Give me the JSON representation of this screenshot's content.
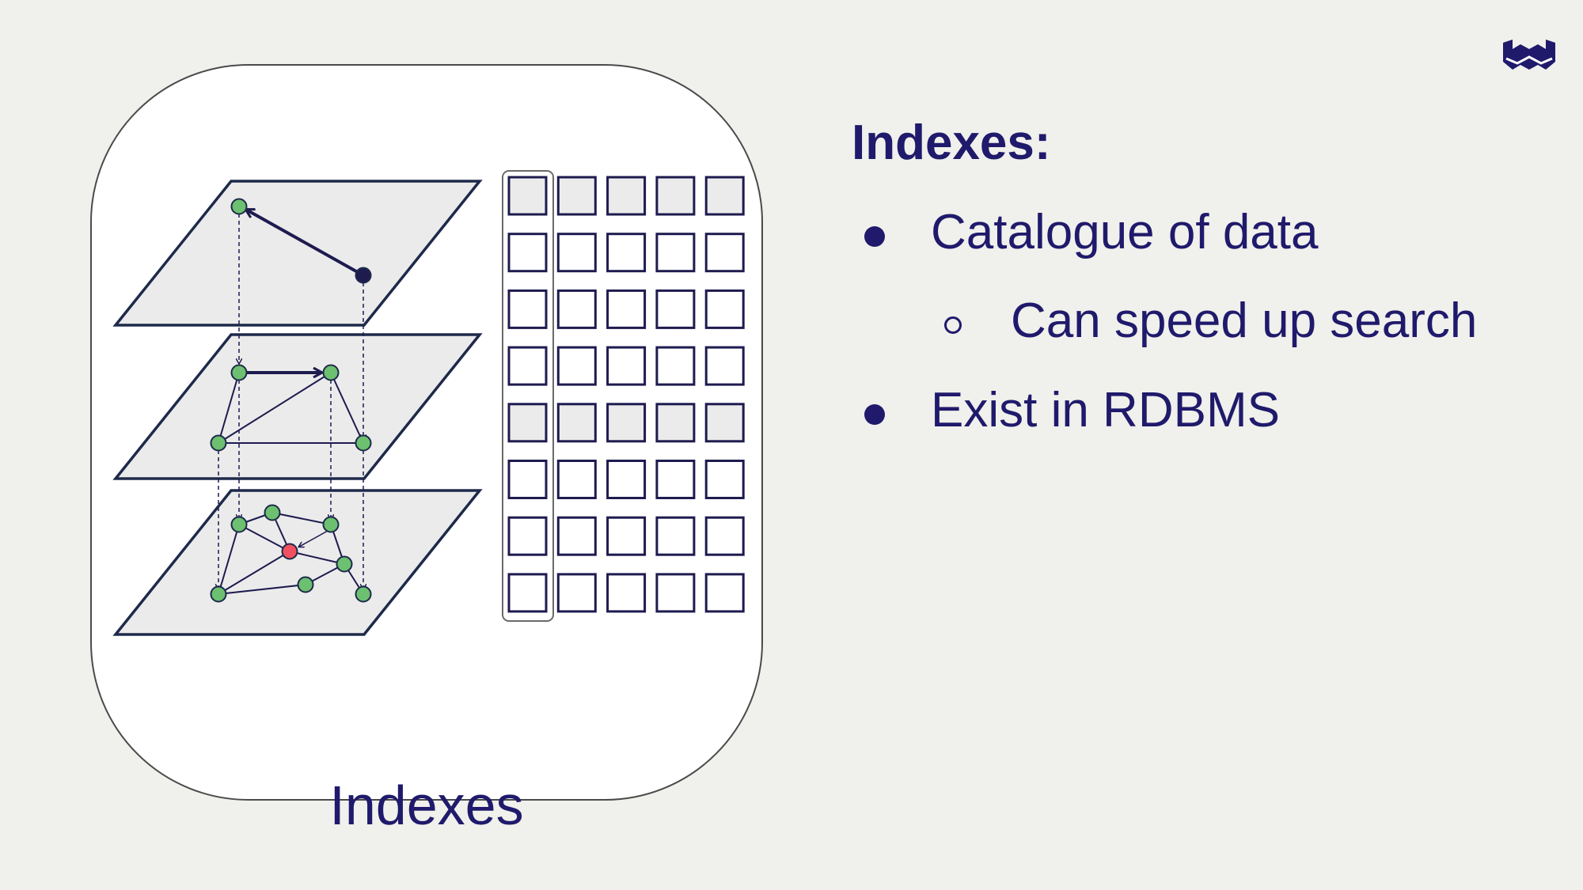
{
  "slide": {
    "heading": "Indexes:",
    "bullets": [
      {
        "text": "Catalogue of data",
        "level": 1
      },
      {
        "text": "Can speed up search",
        "level": 2
      },
      {
        "text": "Exist in RDBMS",
        "level": 1
      }
    ]
  },
  "figure": {
    "caption": "Indexes",
    "grid": {
      "rows": 8,
      "columns": 5,
      "shaded_rows": [
        1,
        5
      ]
    }
  },
  "colors": {
    "background": "#f0f0ec",
    "text": "#1f1a6b",
    "plane_fill": "#ebebeb",
    "node_green": "#6cc070",
    "node_red": "#f0505f",
    "outline": "#1e2a4a"
  },
  "icons": {
    "logo": "brand-logo-icon"
  }
}
